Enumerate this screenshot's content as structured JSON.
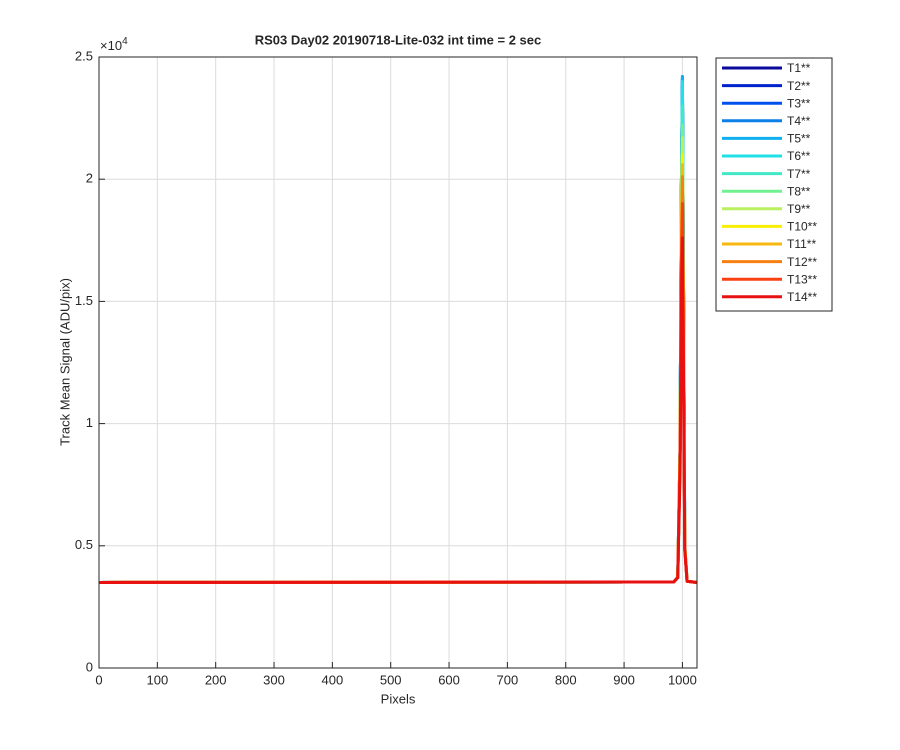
{
  "chart_data": {
    "type": "line",
    "title": "RS03 Day02 20190718-Lite-032 int time = 2 sec",
    "x_label": "Pixels",
    "y_label": "Track Mean Signal (ADU/pix)",
    "y_multiplier": {
      "base": "×10",
      "exponent": "4"
    },
    "x": [
      0,
      985,
      992,
      996,
      998,
      1000,
      1002,
      1004,
      1008,
      1025
    ],
    "xlim": [
      0,
      1025
    ],
    "xticks": [
      0,
      100,
      200,
      300,
      400,
      500,
      600,
      700,
      800,
      900,
      1000
    ],
    "ylim": [
      0,
      25000
    ],
    "yticks": [
      {
        "value": 0,
        "label": "0"
      },
      {
        "value": 5000,
        "label": "0.5"
      },
      {
        "value": 10000,
        "label": "1"
      },
      {
        "value": 15000,
        "label": "1.5"
      },
      {
        "value": 20000,
        "label": "2"
      },
      {
        "value": 25000,
        "label": "2.5"
      }
    ],
    "grid": true,
    "legend": "outside-right",
    "series": [
      {
        "name": "T1**",
        "color": "#0a0a9c",
        "values": [
          3500,
          3520,
          3700,
          9000,
          19000,
          23800,
          15000,
          5000,
          3550,
          3500
        ]
      },
      {
        "name": "T2**",
        "color": "#0022cc",
        "values": [
          3500,
          3520,
          3700,
          9000,
          19000,
          24000,
          15000,
          5000,
          3550,
          3500
        ]
      },
      {
        "name": "T3**",
        "color": "#0050f0",
        "values": [
          3500,
          3520,
          3700,
          9000,
          19000,
          24100,
          15000,
          5000,
          3550,
          3500
        ]
      },
      {
        "name": "T4**",
        "color": "#0a80e8",
        "values": [
          3500,
          3520,
          3700,
          9000,
          19000,
          24200,
          15000,
          5000,
          3550,
          3500
        ]
      },
      {
        "name": "T5**",
        "color": "#10b0f0",
        "values": [
          3500,
          3520,
          3700,
          9000,
          19000,
          24200,
          15000,
          5000,
          3550,
          3500
        ]
      },
      {
        "name": "T6**",
        "color": "#20e0e8",
        "values": [
          3500,
          3520,
          3700,
          9000,
          19000,
          24000,
          15000,
          5000,
          3550,
          3500
        ]
      },
      {
        "name": "T7**",
        "color": "#40e8c8",
        "values": [
          3500,
          3520,
          3700,
          9000,
          18500,
          23000,
          14500,
          5000,
          3550,
          3500
        ]
      },
      {
        "name": "T8**",
        "color": "#70f090",
        "values": [
          3500,
          3520,
          3700,
          9000,
          18000,
          22200,
          14000,
          5000,
          3550,
          3500
        ]
      },
      {
        "name": "T9**",
        "color": "#b8f060",
        "values": [
          3500,
          3520,
          3700,
          9000,
          17500,
          21700,
          13800,
          5000,
          3550,
          3500
        ]
      },
      {
        "name": "T10**",
        "color": "#f8f000",
        "values": [
          3500,
          3520,
          3700,
          9000,
          17000,
          21000,
          13500,
          5000,
          3550,
          3500
        ]
      },
      {
        "name": "T11**",
        "color": "#f8b810",
        "values": [
          3500,
          3520,
          3700,
          9000,
          16800,
          20600,
          13200,
          5000,
          3550,
          3500
        ]
      },
      {
        "name": "T12**",
        "color": "#f88010",
        "values": [
          3500,
          3520,
          3700,
          9000,
          16500,
          20100,
          13000,
          5000,
          3550,
          3500
        ]
      },
      {
        "name": "T13**",
        "color": "#f84010",
        "values": [
          3500,
          3520,
          3700,
          8500,
          15500,
          19000,
          12500,
          4900,
          3550,
          3500
        ]
      },
      {
        "name": "T14**",
        "color": "#e81010",
        "values": [
          3500,
          3520,
          3700,
          8000,
          14500,
          17600,
          11500,
          4800,
          3550,
          3500
        ]
      }
    ]
  }
}
